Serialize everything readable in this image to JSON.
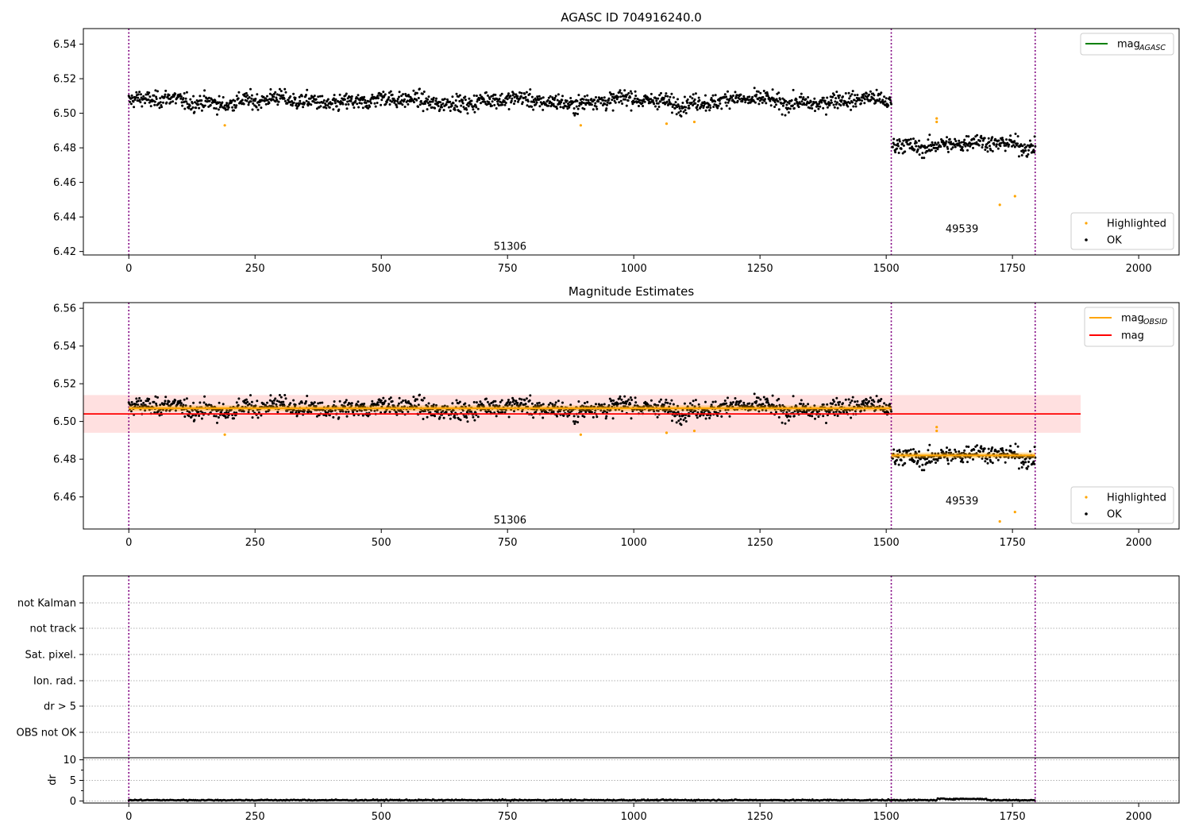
{
  "chart_data": [
    {
      "type": "scatter",
      "title": "AGASC ID 704916240.0",
      "xlim": [
        -90,
        2080
      ],
      "ylim": [
        6.418,
        6.549
      ],
      "xticks": [
        0,
        250,
        500,
        750,
        1000,
        1250,
        1500,
        1750,
        2000
      ],
      "yticks": [
        "6.42",
        "6.44",
        "6.46",
        "6.48",
        "6.50",
        "6.52",
        "6.54"
      ],
      "ytick_values": [
        6.42,
        6.44,
        6.46,
        6.48,
        6.5,
        6.52,
        6.54
      ],
      "obsid_boundaries": [
        0,
        1510,
        1795
      ],
      "annotations": [
        {
          "text": "51306",
          "x": 755,
          "y": 6.421
        },
        {
          "text": "49539",
          "x": 1650,
          "y": 6.431
        }
      ],
      "series": [
        {
          "name": "Highlighted",
          "color": "#ffa500",
          "marker": "dot",
          "x": [
            190,
            895,
            1065,
            1120,
            1600,
            1600,
            1725,
            1755
          ],
          "y": [
            6.493,
            6.493,
            6.494,
            6.495,
            6.497,
            6.495,
            6.447,
            6.452
          ]
        },
        {
          "name": "OK",
          "color": "#000000",
          "marker": "dot",
          "segments": [
            {
              "x": [
                0,
                1510
              ],
              "level": 6.507,
              "spread": 0.004
            },
            {
              "x": [
                1512,
                1795
              ],
              "level": 6.482,
              "spread": 0.004
            }
          ]
        }
      ],
      "legend": {
        "placement_upper": "top-right",
        "upper": [
          {
            "label": "mag",
            "sub": "AGASC",
            "color": "#008000"
          }
        ],
        "placement_lower": "bottom-right",
        "lower": [
          {
            "label": "Highlighted",
            "color": "#ffa500"
          },
          {
            "label": "OK",
            "color": "#000000"
          }
        ]
      },
      "grid": false
    },
    {
      "type": "scatter",
      "title": "Magnitude Estimates",
      "xlim": [
        -90,
        2080
      ],
      "ylim": [
        6.443,
        6.563
      ],
      "xticks": [
        0,
        250,
        500,
        750,
        1000,
        1250,
        1500,
        1750,
        2000
      ],
      "yticks": [
        "6.46",
        "6.48",
        "6.50",
        "6.52",
        "6.54",
        "6.56"
      ],
      "ytick_values": [
        6.46,
        6.48,
        6.5,
        6.52,
        6.54,
        6.56
      ],
      "obsid_boundaries": [
        0,
        1510,
        1795
      ],
      "mag_line": {
        "value": 6.504,
        "x": [
          -90,
          1885
        ],
        "band": [
          6.494,
          6.514
        ],
        "color": "#ff0000"
      },
      "obsid_mag": [
        {
          "value": 6.507,
          "x": [
            0,
            1510
          ],
          "band": [
            6.5055,
            6.5085
          ]
        },
        {
          "value": 6.482,
          "x": [
            1510,
            1795
          ],
          "band": [
            6.4805,
            6.4835
          ]
        }
      ],
      "annotations": [
        {
          "text": "51306",
          "x": 755,
          "y": 6.446
        },
        {
          "text": "49539",
          "x": 1650,
          "y": 6.456
        }
      ],
      "legend": {
        "placement_upper": "top-right",
        "upper": [
          {
            "label": "mag",
            "sub": "OBSID",
            "color": "#ffa500"
          },
          {
            "label": "mag",
            "sub": "",
            "color": "#ff0000"
          }
        ],
        "placement_lower": "bottom-right",
        "lower": [
          {
            "label": "Highlighted",
            "color": "#ffa500"
          },
          {
            "label": "OK",
            "color": "#000000"
          }
        ]
      },
      "grid": false
    },
    {
      "type": "scatter",
      "title": "",
      "flags_panel": {
        "labels": [
          "not Kalman",
          "not track",
          "Sat. pixel.",
          "Ion. rad.",
          "dr > 5",
          "OBS not OK"
        ],
        "flagged_points": []
      },
      "dr_panel": {
        "ylabel": "dr",
        "ylim": [
          -0.5,
          10.5
        ],
        "yticks": [
          "0",
          "5",
          "10"
        ],
        "ytick_values": [
          0,
          5,
          10
        ],
        "typical_value": 0.2
      },
      "xlim": [
        -90,
        2080
      ],
      "xticks": [
        0,
        250,
        500,
        750,
        1000,
        1250,
        1500,
        1750,
        2000
      ],
      "obsid_boundaries": [
        0,
        1510,
        1795
      ],
      "grid": true
    }
  ]
}
